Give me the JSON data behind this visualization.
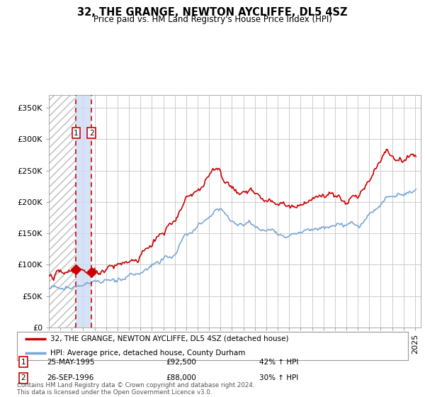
{
  "title": "32, THE GRANGE, NEWTON AYCLIFFE, DL5 4SZ",
  "subtitle": "Price paid vs. HM Land Registry's House Price Index (HPI)",
  "legend_line1": "32, THE GRANGE, NEWTON AYCLIFFE, DL5 4SZ (detached house)",
  "legend_line2": "HPI: Average price, detached house, County Durham",
  "footer": "Contains HM Land Registry data © Crown copyright and database right 2024.\nThis data is licensed under the Open Government Licence v3.0.",
  "transaction1_date": "25-MAY-1995",
  "transaction1_price": 92500,
  "transaction1_hpi": "42% ↑ HPI",
  "transaction2_date": "26-SEP-1996",
  "transaction2_price": 88000,
  "transaction2_hpi": "30% ↑ HPI",
  "t1_x": 1995.38,
  "t2_x": 1996.73,
  "red_line_color": "#cc0000",
  "blue_line_color": "#7ba7d4",
  "bg_color": "#ffffff",
  "grid_color": "#cccccc",
  "ylim_max": 370000,
  "xlim_start": 1993.0,
  "xlim_end": 2025.5,
  "yticks": [
    0,
    50000,
    100000,
    150000,
    200000,
    250000,
    300000,
    350000
  ],
  "ylabels": [
    "£0",
    "£50K",
    "£100K",
    "£150K",
    "£200K",
    "£250K",
    "£300K",
    "£350K"
  ]
}
